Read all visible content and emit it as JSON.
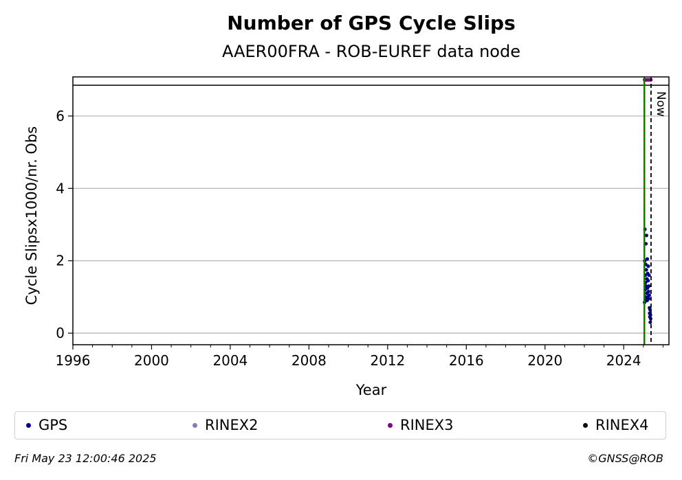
{
  "chart_data": {
    "type": "scatter",
    "title": "Number of GPS Cycle Slips",
    "subtitle": "AAER00FRA - ROB-EUREF data node",
    "xlabel": "Year",
    "ylabel": "Cycle Slipsx1000/nr. Obs",
    "xlim": [
      1996,
      2026.3
    ],
    "ylim": [
      -0.32,
      7.08
    ],
    "x_ticks": [
      1996,
      2000,
      2004,
      2008,
      2012,
      2016,
      2020,
      2024
    ],
    "y_ticks": [
      0,
      2,
      4,
      6
    ],
    "grid": "horizontal",
    "now_label": "Now",
    "now_x": 2025.39,
    "start_line_x": 2025.05,
    "upper_band_y": 6.85,
    "series": [
      {
        "name": "GPS",
        "color": "#00008b",
        "x": [
          2025.06,
          2025.07,
          2025.08,
          2025.09,
          2025.1,
          2025.1,
          2025.11,
          2025.12,
          2025.13,
          2025.13,
          2025.14,
          2025.15,
          2025.16,
          2025.17,
          2025.18,
          2025.19,
          2025.2,
          2025.21,
          2025.22,
          2025.23,
          2025.24,
          2025.25,
          2025.26,
          2025.27,
          2025.28,
          2025.29,
          2025.3,
          2025.31,
          2025.32,
          2025.33,
          2025.34,
          2025.35,
          2025.36,
          2025.37
        ],
        "y": [
          0.85,
          2.0,
          2.87,
          1.2,
          1.6,
          1.0,
          1.4,
          1.9,
          2.47,
          0.95,
          1.3,
          1.75,
          2.7,
          1.1,
          1.5,
          0.9,
          2.05,
          1.25,
          1.65,
          1.0,
          1.45,
          1.85,
          1.15,
          0.95,
          1.3,
          1.6,
          1.05,
          0.7,
          0.55,
          0.45,
          0.65,
          0.3,
          0.5,
          0.4
        ]
      },
      {
        "name": "RINEX2",
        "color": "#7f7fbf",
        "x": [],
        "y": []
      },
      {
        "name": "RINEX3",
        "color": "#800080",
        "x": [
          2025.06,
          2025.1,
          2025.14,
          2025.18,
          2025.22,
          2025.26,
          2025.3,
          2025.34,
          2025.38
        ],
        "y": [
          7.0,
          7.0,
          7.0,
          7.0,
          7.0,
          7.0,
          7.0,
          7.0,
          7.0
        ]
      },
      {
        "name": "RINEX4",
        "color": "#1a0010",
        "x": [],
        "y": []
      }
    ]
  },
  "footer": {
    "date": "Fri May 23 12:00:46 2025",
    "copyright": "©GNSS@ROB"
  }
}
